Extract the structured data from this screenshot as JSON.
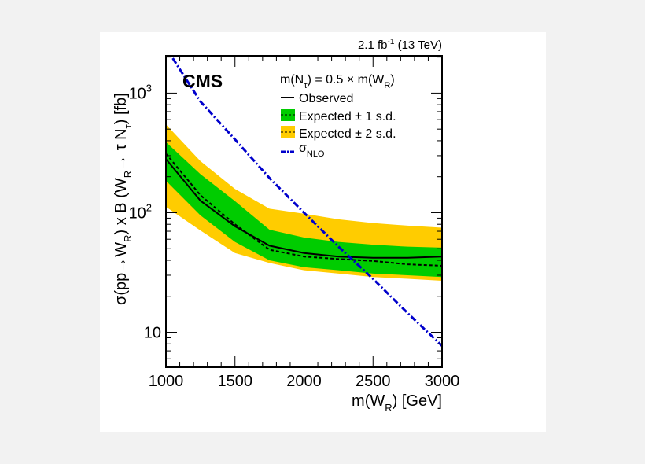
{
  "chart_data": {
    "type": "line",
    "title": "",
    "lumi_label": "2.1 fb",
    "lumi_exp": "-1",
    "lumi_energy": "(13 TeV)",
    "experiment_label": "CMS",
    "condition_label": "m(N",
    "condition_sub": "τ",
    "condition_rest": ") = 0.5 × m(W",
    "condition_sub2": "R",
    "condition_end": ")",
    "xlabel": "m(W",
    "xlabel_sub": "R",
    "xlabel_end": ") [GeV]",
    "ylabel": "σ(pp→W",
    "ylabel_sub": "R",
    "ylabel_mid": ") x B (W",
    "ylabel_sub2": "R",
    "ylabel_mid2": "→ τ N",
    "ylabel_sub3": "τ",
    "ylabel_end": ") [fb]",
    "xlim": [
      1000,
      3000
    ],
    "ylim": [
      5.1,
      2050
    ],
    "y_scale": "log",
    "x_ticks": [
      "1000",
      "1500",
      "2000",
      "2500",
      "3000"
    ],
    "y_ticks": [
      {
        "label": "10",
        "exp": ""
      },
      {
        "label": "10",
        "exp": "2"
      },
      {
        "label": "10",
        "exp": "3"
      }
    ],
    "legend_placement": "top-right",
    "x": [
      1000,
      1250,
      1500,
      1750,
      2000,
      2250,
      2500,
      2750,
      3000
    ],
    "series": [
      {
        "name": "Observed",
        "style": "solid",
        "color": "#000000",
        "values": [
          281,
          126,
          77,
          53,
          46,
          43,
          42,
          42,
          43
        ]
      },
      {
        "name": "Expected",
        "style": "dashed",
        "color": "#000000",
        "values": [
          312,
          140,
          80,
          49,
          43,
          41,
          39.5,
          37,
          36
        ]
      },
      {
        "name": "σ",
        "name_sub": "NLO",
        "style": "dash-dot",
        "color": "#0000cc",
        "values": [
          2400,
          850,
          410,
          195,
          100,
          52,
          28,
          14.5,
          7.7
        ]
      }
    ],
    "bands": [
      {
        "name": "Expected ± 2 s.d.",
        "color": "#ffcc00",
        "upper": [
          547,
          270,
          158,
          108,
          98,
          88,
          82,
          78,
          75
        ],
        "lower": [
          112,
          71,
          46,
          38,
          33,
          31,
          29,
          28,
          27
        ]
      },
      {
        "name": "Expected ± 1 s.d.",
        "color": "#00cc00",
        "upper": [
          390,
          210,
          125,
          72,
          62,
          57,
          54,
          52,
          51
        ],
        "lower": [
          185,
          95,
          57,
          40,
          35,
          33,
          31,
          30,
          29
        ]
      }
    ]
  }
}
